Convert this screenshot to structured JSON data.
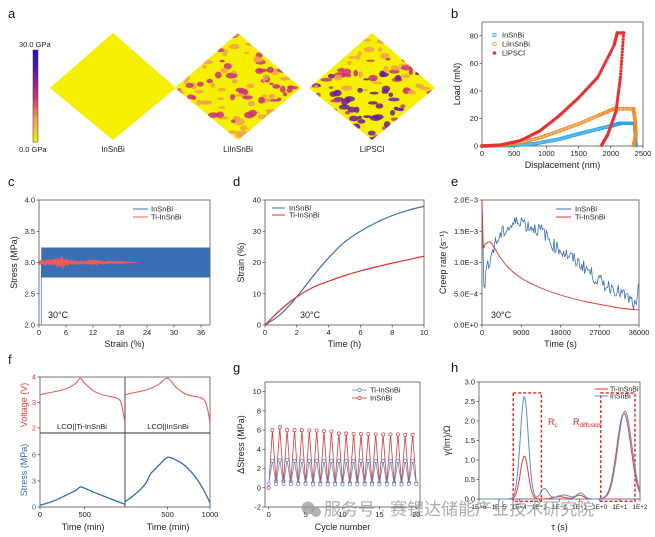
{
  "chart_data": [
    {
      "panel": "a",
      "type": "heatmap",
      "title": "",
      "colorbar": {
        "max_label": "30.0 GPa",
        "min_label": "0.0 GPa",
        "range": [
          0,
          30
        ],
        "unit": "GPa",
        "colors": [
          "#f5f000",
          "#f0a050",
          "#c8307a",
          "#6a1a9a",
          "#1a10c8"
        ]
      },
      "maps": [
        {
          "label": "InSnBi",
          "level": 0.12
        },
        {
          "label": "LiInSnBi",
          "level": 0.5
        },
        {
          "label": "LiPSCl",
          "level": 0.75
        }
      ]
    },
    {
      "panel": "b",
      "type": "scatter",
      "xlabel": "Displacement (nm)",
      "ylabel": "Load (mN)",
      "xlim": [
        0,
        2500
      ],
      "ylim": [
        0,
        90
      ],
      "xticks": [
        0,
        500,
        1000,
        1500,
        2000,
        2500
      ],
      "yticks": [
        0,
        20,
        40,
        60,
        80
      ],
      "legend_position": "top-left",
      "series": [
        {
          "name": "InSnBi",
          "color": "#29a3e6",
          "marker": "square-open",
          "loading": [
            [
              0,
              0
            ],
            [
              400,
              0.3
            ],
            [
              800,
              1.5
            ],
            [
              1200,
              5
            ],
            [
              1600,
              10
            ],
            [
              2000,
              14.5
            ],
            [
              2150,
              16.5
            ]
          ],
          "hold": [
            [
              2150,
              16.5
            ],
            [
              2370,
              16.5
            ]
          ],
          "unloading": [
            [
              2370,
              16.5
            ],
            [
              2380,
              10
            ],
            [
              2385,
              5
            ],
            [
              2390,
              0
            ]
          ]
        },
        {
          "name": "LiInSnBi",
          "color": "#f28c28",
          "marker": "circle-open",
          "loading": [
            [
              0,
              0
            ],
            [
              300,
              0.6
            ],
            [
              600,
              2.5
            ],
            [
              900,
              6
            ],
            [
              1200,
              11
            ],
            [
              1500,
              16
            ],
            [
              1800,
              22
            ],
            [
              2050,
              27
            ]
          ],
          "hold": [
            [
              2050,
              27
            ],
            [
              2350,
              27
            ]
          ],
          "unloading": [
            [
              2350,
              27
            ],
            [
              2380,
              18
            ],
            [
              2390,
              8
            ],
            [
              2350,
              0
            ]
          ]
        },
        {
          "name": "LiPSCl",
          "color": "#e83030",
          "marker": "star",
          "loading": [
            [
              0,
              0
            ],
            [
              300,
              0.8
            ],
            [
              600,
              4
            ],
            [
              900,
              11
            ],
            [
              1200,
              22
            ],
            [
              1500,
              35
            ],
            [
              1800,
              50
            ],
            [
              2050,
              73
            ],
            [
              2100,
              82
            ]
          ],
          "hold": [
            [
              2100,
              82
            ],
            [
              2200,
              82
            ]
          ],
          "unloading": [
            [
              2200,
              82
            ],
            [
              2150,
              50
            ],
            [
              2080,
              25
            ],
            [
              1950,
              8
            ],
            [
              1850,
              0
            ]
          ]
        }
      ]
    },
    {
      "panel": "c",
      "type": "line",
      "xlabel": "Strain (%)",
      "ylabel": "Stress (MPa)",
      "xlim": [
        0,
        38
      ],
      "ylim": [
        2.0,
        4.0
      ],
      "xticks": [
        0,
        6,
        12,
        18,
        24,
        30,
        36
      ],
      "yticks": [
        2.0,
        2.5,
        3.0,
        3.5,
        4.0
      ],
      "annotation": "30°C",
      "legend_position": "top-right",
      "series": [
        {
          "name": "InSnBi",
          "color": "#3a6fb5",
          "x_range": [
            0.5,
            38
          ],
          "center": 3.0,
          "amplitude": 0.24
        },
        {
          "name": "Ti-InSnBi",
          "color": "#f05a5a",
          "x_range": [
            0,
            22
          ],
          "center": 3.0,
          "amplitude_profile": [
            [
              0,
              0.04
            ],
            [
              3,
              0.05
            ],
            [
              5,
              0.09
            ],
            [
              7,
              0.04
            ],
            [
              10,
              0.02
            ],
            [
              12,
              0.05
            ],
            [
              14,
              0.03
            ],
            [
              17,
              0.02
            ],
            [
              22,
              0.0
            ]
          ]
        }
      ]
    },
    {
      "panel": "d",
      "type": "line",
      "xlabel": "Time (h)",
      "ylabel": "Strain (%)",
      "xlim": [
        0,
        10
      ],
      "ylim": [
        0,
        40
      ],
      "xticks": [
        0,
        2,
        4,
        6,
        8,
        10
      ],
      "yticks": [
        0,
        10,
        20,
        30,
        40
      ],
      "annotation": "30°C",
      "legend_position": "top-left",
      "series": [
        {
          "name": "InSnBi",
          "color": "#3a6fb5",
          "x": [
            0,
            1,
            2,
            3,
            4,
            5,
            6,
            7,
            8,
            9,
            10
          ],
          "values": [
            0,
            3.5,
            9,
            15.5,
            21.5,
            26.5,
            30,
            32.8,
            35,
            36.7,
            38
          ]
        },
        {
          "name": "Ti-InSnBi",
          "color": "#e03030",
          "x": [
            0,
            1,
            2,
            3,
            4,
            5,
            6,
            7,
            8,
            9,
            10
          ],
          "values": [
            0,
            5,
            9,
            12,
            14,
            15.8,
            17.3,
            18.6,
            19.8,
            20.9,
            22
          ]
        }
      ]
    },
    {
      "panel": "e",
      "type": "line",
      "xlabel": "Time (s)",
      "ylabel": "Creep rate (s⁻¹)",
      "xlim": [
        0,
        36000
      ],
      "ylim": [
        0,
        0.002
      ],
      "xticks": [
        0,
        9000,
        18000,
        27000,
        36000
      ],
      "yticks_labels": [
        "0.0E+0",
        "5.0E−4",
        "1.0E−3",
        "1.5E−3",
        "2.0E−3"
      ],
      "yticks": [
        0,
        0.0005,
        0.001,
        0.0015,
        0.002
      ],
      "annotation": "30°C",
      "legend_position": "top-right",
      "series": [
        {
          "name": "InSnBi",
          "color": "#3a6fb5",
          "x": [
            0,
            500,
            1000,
            1500,
            2000,
            3000,
            4000,
            5000,
            6000,
            7000,
            8000,
            9000,
            10000,
            12000,
            14000,
            16000,
            18000,
            20000,
            22000,
            24000,
            26000,
            28000,
            30000,
            32000,
            34000,
            35500,
            36000
          ],
          "values": [
            0.0019,
            0.00045,
            0.0009,
            0.001,
            0.0011,
            0.0013,
            0.0014,
            0.0015,
            0.00155,
            0.0016,
            0.00165,
            0.0017,
            0.0016,
            0.00155,
            0.0015,
            0.0013,
            0.0012,
            0.0011,
            0.001,
            0.0009,
            0.00075,
            0.00065,
            0.0006,
            0.0005,
            0.0004,
            0.00025,
            0.00075
          ]
        },
        {
          "name": "Ti-InSnBi",
          "color": "#e83030",
          "x": [
            0,
            300,
            800,
            2000,
            4000,
            6000,
            9000,
            12000,
            15000,
            18000,
            21000,
            24000,
            27000,
            30000,
            33000,
            36000
          ],
          "values": [
            0.002,
            0.00128,
            0.0013,
            0.00132,
            0.0011,
            0.00092,
            0.00075,
            0.00064,
            0.00055,
            0.00048,
            0.00042,
            0.00037,
            0.00033,
            0.00029,
            0.00026,
            0.00024
          ]
        }
      ]
    },
    {
      "panel": "f",
      "type": "line",
      "xlabel": "Time (min)",
      "ylabel_top": "Voltage (V)",
      "ylabel_bottom": "Stress (MPa)",
      "xlim": [
        0,
        1000
      ],
      "xticks_left": [
        "0",
        "500"
      ],
      "xticks_right": [
        "0",
        "500",
        "1000"
      ],
      "voltage_ylim": [
        1.8,
        4.0
      ],
      "voltage_yticks": [
        2,
        3,
        4
      ],
      "stress_ylim": [
        0,
        8.5
      ],
      "stress_yticks": [
        0,
        3,
        6
      ],
      "subplots": [
        {
          "label": "LCO||Ti-InSnBi",
          "voltage": {
            "color": "#f05050",
            "x": [
              0,
              100,
              200,
              300,
              400,
              450,
              500,
              600,
              700,
              800,
              850,
              900,
              930,
              950
            ],
            "values": [
              3.3,
              3.38,
              3.45,
              3.55,
              3.75,
              3.95,
              3.75,
              3.45,
              3.3,
              3.22,
              3.18,
              3.05,
              2.6,
              2.2
            ]
          },
          "stress": {
            "color": "#2f6db5",
            "x": [
              0,
              100,
              200,
              300,
              400,
              450,
              500,
              600,
              700,
              800,
              900,
              950
            ],
            "values": [
              0.2,
              0.5,
              0.9,
              1.4,
              1.9,
              2.3,
              2.15,
              1.7,
              1.3,
              0.9,
              0.5,
              0.3
            ]
          }
        },
        {
          "label": "LCO||InSnBi",
          "voltage": {
            "color": "#f05050",
            "x": [
              0,
              100,
              200,
              300,
              400,
              500,
              600,
              700,
              800,
              900,
              950,
              980,
              1000
            ],
            "values": [
              3.3,
              3.38,
              3.45,
              3.55,
              3.72,
              3.95,
              3.6,
              3.35,
              3.25,
              3.18,
              3.0,
              2.6,
              2.2
            ]
          },
          "stress": {
            "color": "#2f6db5",
            "x": [
              0,
              100,
              200,
              250,
              300,
              350,
              400,
              500,
              600,
              700,
              800,
              900,
              1000
            ],
            "values": [
              0.6,
              1.3,
              2.2,
              2.8,
              3.8,
              4.3,
              4.8,
              5.7,
              5.4,
              4.8,
              3.8,
              2.4,
              0.5
            ]
          }
        }
      ]
    },
    {
      "panel": "g",
      "type": "line",
      "xlabel": "Cycle number",
      "ylabel": "ΔStress (MPa)",
      "xlim": [
        -0.5,
        20.5
      ],
      "ylim": [
        -2,
        11
      ],
      "xticks": [
        0,
        5,
        10,
        15,
        20
      ],
      "yticks": [
        -2,
        0,
        2,
        4,
        6,
        8,
        10
      ],
      "legend_position": "top-right",
      "series": [
        {
          "name": "Ti-InSnBi",
          "color": "#5a8fd0",
          "marker": "circle-open",
          "peaks": [
            2.8,
            2.85,
            2.9,
            2.8,
            2.8,
            2.8,
            2.8,
            2.8,
            2.8,
            2.8,
            2.8,
            2.8,
            2.8,
            2.8,
            2.8,
            2.8,
            2.8,
            2.8,
            2.8,
            2.8
          ],
          "valleys": [
            0.4,
            0.4,
            0.4,
            0.4,
            0.4,
            0.4,
            0.35,
            0.35,
            0.35,
            0.35,
            0.35,
            0.35,
            0.35,
            0.35,
            0.35,
            0.35,
            0.35,
            0.35,
            0.35,
            0.4
          ]
        },
        {
          "name": "InSnBi",
          "color": "#d83a3a",
          "marker": "circle-open",
          "peaks": [
            6.0,
            6.3,
            6.0,
            6.0,
            6.0,
            5.95,
            5.95,
            5.9,
            5.85,
            5.65,
            5.65,
            5.6,
            5.6,
            5.6,
            5.55,
            5.55,
            5.55,
            5.55,
            5.5,
            5.5
          ],
          "valleys": [
            0.0,
            0.7,
            0.7,
            0.6,
            0.5,
            0.5,
            0.5,
            0.5,
            0.5,
            0.5,
            0.5,
            0.5,
            0.5,
            0.5,
            0.5,
            0.5,
            0.5,
            0.5,
            0.5,
            0.5,
            0.45
          ]
        }
      ]
    },
    {
      "panel": "h",
      "type": "line",
      "xlabel": "τ (s)",
      "ylabel": "γ(lnτ)/Ω",
      "xlim_log10": [
        -6,
        2
      ],
      "ylim": [
        0,
        3.0
      ],
      "xticks": [
        "1E−6",
        "1E−5",
        "1E−4",
        "1E−3",
        "1E−2",
        "1E−1",
        "1E+0",
        "1E+1",
        "1E+2"
      ],
      "yticks": [
        0.0,
        0.5,
        1.0,
        1.5,
        2.0,
        2.5,
        3.0
      ],
      "legend_position": "top-right",
      "annotations": [
        "Rc",
        "Rdiffusion"
      ],
      "series": [
        {
          "name": "Ti-InSnBi",
          "color": "#e83a3a",
          "peaks": [
            {
              "log_tau": -3.75,
              "height": 1.1,
              "width": 0.2
            },
            {
              "log_tau": -2.0,
              "height": 0.06,
              "width": 0.3
            },
            {
              "log_tau": -1.0,
              "height": 0.1,
              "width": 0.2
            },
            {
              "log_tau": 1.2,
              "height": 2.2,
              "width": 0.35
            }
          ]
        },
        {
          "name": "InSnBi",
          "color": "#5a8fd0",
          "peaks": [
            {
              "log_tau": -3.75,
              "height": 2.62,
              "width": 0.2
            },
            {
              "log_tau": -2.75,
              "height": 0.27,
              "width": 0.18
            },
            {
              "log_tau": -1.8,
              "height": 0.1,
              "width": 0.35
            },
            {
              "log_tau": -0.95,
              "height": 0.15,
              "width": 0.18
            },
            {
              "log_tau": 1.25,
              "height": 2.25,
              "width": 0.35
            }
          ]
        }
      ]
    }
  ],
  "panel_labels": [
    "a",
    "b",
    "c",
    "d",
    "e",
    "f",
    "g",
    "h"
  ],
  "watermark": "服务号 · 赛锂达储能产业技术研究院"
}
